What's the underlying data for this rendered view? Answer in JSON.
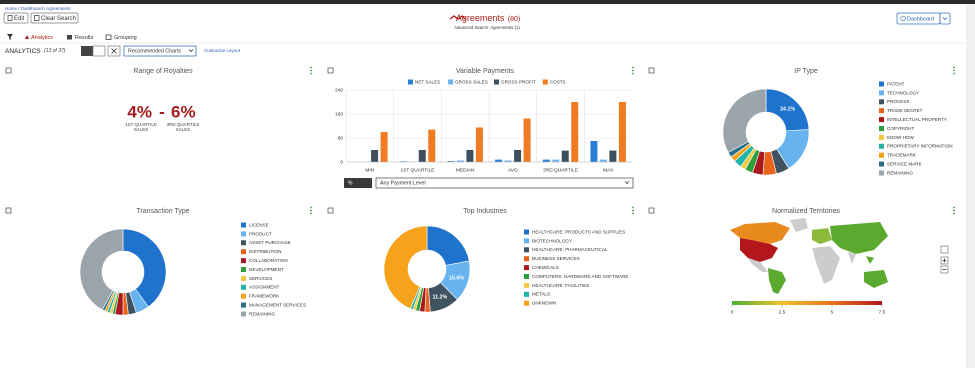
{
  "header": {
    "breadcrumb": "Home / Dashboard / Agreements",
    "buttons": [
      "Edit",
      "Clear Search"
    ],
    "title": "Agreements",
    "count": "(80)",
    "subtitle": "Advanced Search: Agreements (1)",
    "dashboard_button": "Dashboard"
  },
  "tabs": [
    "Analytics",
    "Results",
    "Grouping"
  ],
  "toolbar": {
    "label": "ANALYTICS",
    "count": "(13 of 37)",
    "select": "Recommended Charts",
    "link": "Customize Layout"
  },
  "chart_data": [
    {
      "type": "stat",
      "title": "Range of Royalties",
      "categories": [
        "1ST QUARTILE SALES",
        "3RD QUARTILE SALES"
      ],
      "values": [
        4,
        6
      ],
      "value_labels": [
        "4%",
        "6%"
      ],
      "separator": "-",
      "color": "#a31c1c"
    },
    {
      "type": "bar",
      "title": "Variable Payments",
      "categories": [
        "MIN",
        "1ST QUARTILE",
        "MEDIAN",
        "AVG",
        "3RD QUARTILE",
        "MAX"
      ],
      "series": [
        {
          "name": "NET SALES",
          "color": "#2a7fd4",
          "values": [
            0,
            2,
            3,
            8,
            8,
            70
          ]
        },
        {
          "name": "GROSS SALES",
          "color": "#6db3f2",
          "values": [
            0,
            1,
            5,
            5,
            8,
            8
          ]
        },
        {
          "name": "GROSS PROFIT",
          "color": "#3d4f5c",
          "values": [
            40,
            40,
            40,
            40,
            38,
            38
          ]
        },
        {
          "name": "COSTS",
          "color": "#f07b22",
          "values": [
            100,
            108,
            115,
            145,
            200,
            200
          ]
        }
      ],
      "ylim": [
        0,
        240
      ],
      "yticks": [
        0,
        80,
        160,
        240
      ],
      "grid": true,
      "legend": "top",
      "controls": [
        "%",
        "Any Payment Level"
      ]
    },
    {
      "type": "donut",
      "title": "IP Type",
      "legend": "right",
      "categories": [
        "PATENT",
        "TECHNOLOGY",
        "PROCESS",
        "TRADE SECRET",
        "INTELLECTUAL PROPERTY",
        "COPYRIGHT",
        "KNOW HOW",
        "PROPRIETARY INFORMATION",
        "TRADEMARK",
        "SERVICE MARK",
        "REMAINING"
      ],
      "values": [
        24.1,
        17,
        5,
        5,
        4,
        3,
        2,
        3,
        2,
        2,
        32.9
      ],
      "value_labels": [
        "24.1%",
        null,
        null,
        null,
        null,
        null,
        null,
        null,
        null,
        null,
        null
      ],
      "colors": [
        "#1f73cc",
        "#66b3f0",
        "#3f5360",
        "#e8641c",
        "#a8181c",
        "#2e9e3e",
        "#f5c842",
        "#1fb5a8",
        "#f7a21b",
        "#2b6e8a",
        "#9aa5ab"
      ]
    },
    {
      "type": "donut",
      "title": "Transaction Type",
      "legend": "right",
      "categories": [
        "LICENSE",
        "PRODUCT",
        "ASSET PURCHASE",
        "DISTRIBUTION",
        "COLLABORATION",
        "DEVELOPMENT",
        "SERVICES",
        "ASSIGNMENT",
        "FRAMEWORK",
        "MANAGEMENT SERVICES",
        "REMAINING"
      ],
      "values": [
        40,
        5,
        3,
        2,
        3,
        1,
        1,
        1,
        1,
        1,
        42
      ],
      "colors": [
        "#1f73cc",
        "#66b3f0",
        "#3f5360",
        "#e8641c",
        "#a8181c",
        "#2e9e3e",
        "#f5c842",
        "#1fb5a8",
        "#f7a21b",
        "#2b6e8a",
        "#9aa5ab"
      ]
    },
    {
      "type": "donut",
      "title": "Top Industries",
      "legend": "right",
      "categories": [
        "HEALTHCARE: PRODUCTS AND SUPPLIES",
        "BIOTECHNOLOGY",
        "HEALTHCARE: PHARMACEUTICAL",
        "BUSINESS SERVICES",
        "CHEMICALS",
        "COMPUTERS: HARDWARE AND SOFTWARE",
        "HEALTHCARE: FACILITIES",
        "METALS",
        "UNKNOWN"
      ],
      "values": [
        22,
        15.6,
        11.2,
        2,
        2,
        1.5,
        1,
        1,
        43.7
      ],
      "value_labels": [
        null,
        "15.6%",
        "11.2%",
        null,
        null,
        null,
        null,
        null,
        null
      ],
      "colors": [
        "#1f73cc",
        "#66b3f0",
        "#3f5360",
        "#e8641c",
        "#a8181c",
        "#2e9e3e",
        "#f5c842",
        "#1fb5a8",
        "#f7a21b"
      ]
    },
    {
      "type": "map",
      "title": "Normalized Territories",
      "colorbar": {
        "lim": [
          0,
          7.5
        ],
        "ticks": [
          0,
          2.5,
          5,
          7.5
        ],
        "colors": [
          "#4caf32",
          "#f2c12e",
          "#e8731e",
          "#b3161b"
        ]
      }
    }
  ]
}
